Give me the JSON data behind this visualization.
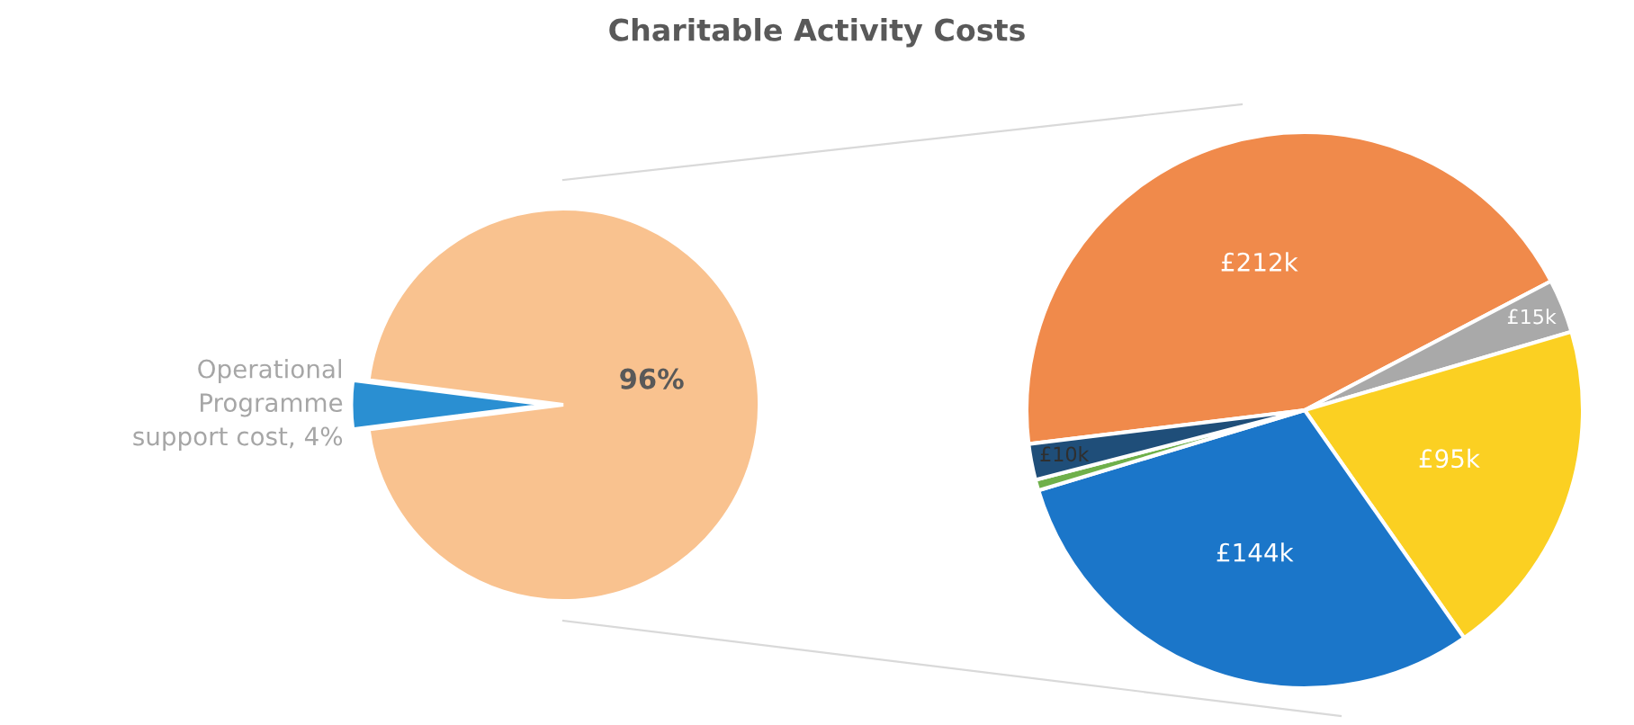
{
  "chart_data": [
    {
      "type": "pie",
      "title": "Charitable Activity Costs",
      "categories": [
        null,
        "Operational Programme support cost, 4%"
      ],
      "values": [
        96,
        4
      ],
      "value_labels": [
        "96%",
        null
      ],
      "colors": [
        "#f9c28f",
        "#2a8fd2"
      ]
    },
    {
      "type": "pie",
      "categories": [
        null,
        null,
        null,
        null,
        null,
        null
      ],
      "values": [
        212,
        15,
        95,
        144,
        3,
        10
      ],
      "value_labels": [
        "£212k",
        "£15k",
        "£95k",
        "£144k",
        null,
        "£10k"
      ],
      "colors": [
        "#f08a4b",
        "#a9a9a9",
        "#fbd022",
        "#1b76c9",
        "#6fb04a",
        "#1f4e79"
      ]
    }
  ]
}
